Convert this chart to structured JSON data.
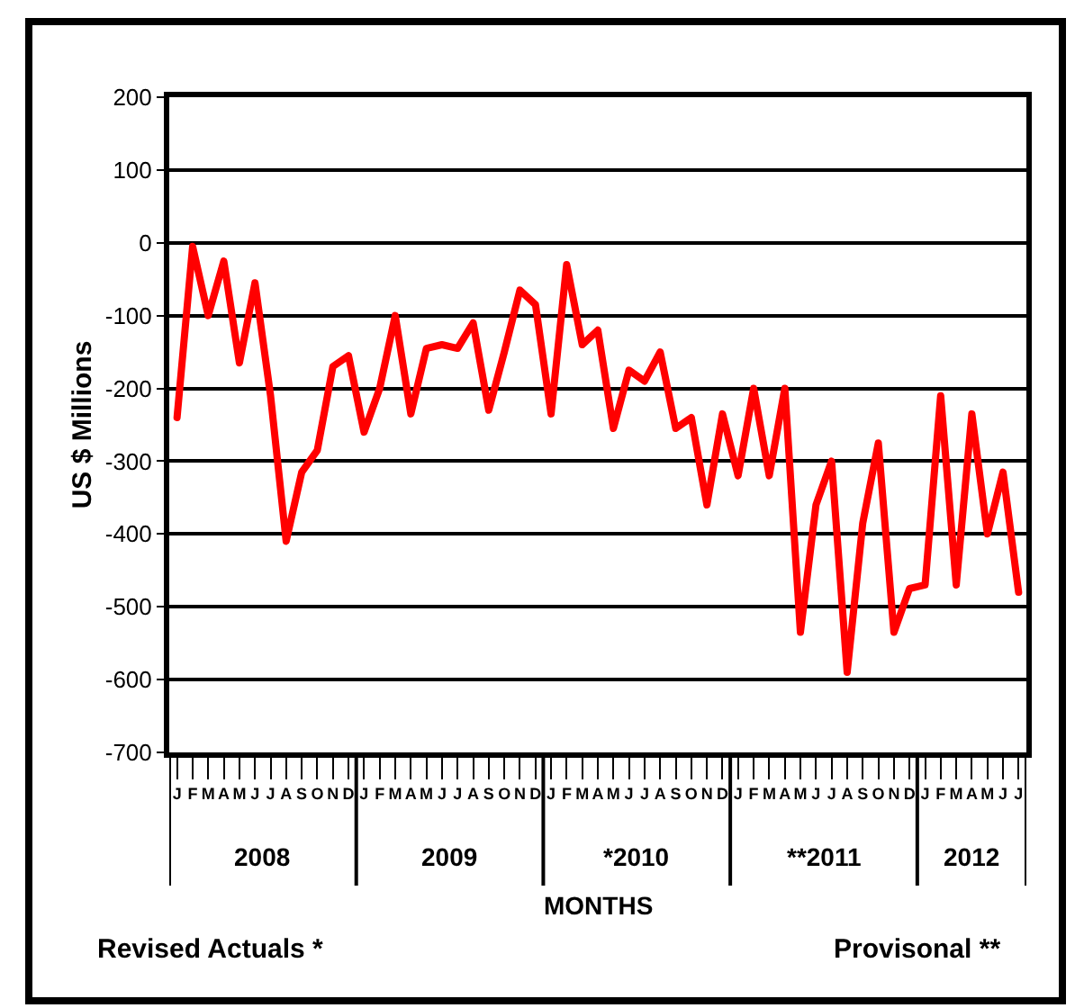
{
  "chart_data": {
    "type": "line",
    "ylabel": "US $ Millions",
    "xlabel": "MONTHS",
    "categories": [
      "J",
      "F",
      "M",
      "A",
      "M",
      "J",
      "J",
      "A",
      "S",
      "O",
      "N",
      "D",
      "J",
      "F",
      "M",
      "A",
      "M",
      "J",
      "J",
      "A",
      "S",
      "O",
      "N",
      "D",
      "J",
      "F",
      "M",
      "A",
      "M",
      "J",
      "J",
      "A",
      "S",
      "O",
      "N",
      "D",
      "J",
      "F",
      "M",
      "A",
      "M",
      "J",
      "J",
      "A",
      "S",
      "O",
      "N",
      "D",
      "J",
      "F",
      "M",
      "A",
      "M",
      "J",
      "J"
    ],
    "series": [
      {
        "color": "#ff0000",
        "values": [
          -240,
          -5,
          -100,
          -25,
          -165,
          -55,
          -210,
          -410,
          -315,
          -285,
          -170,
          -155,
          -260,
          -200,
          -100,
          -235,
          -145,
          -140,
          -145,
          -110,
          -230,
          -150,
          -65,
          -85,
          -235,
          -30,
          -140,
          -120,
          -255,
          -175,
          -190,
          -150,
          -255,
          -240,
          -360,
          -235,
          -320,
          -200,
          -320,
          -200,
          -535,
          -360,
          -300,
          -590,
          -385,
          -275,
          -535,
          -475,
          -470,
          -210,
          -470,
          -235,
          -400,
          -315,
          -480
        ]
      }
    ],
    "ylim": [
      -700,
      200
    ],
    "yticks": [
      -700,
      -600,
      -500,
      -400,
      -300,
      -200,
      -100,
      0,
      100,
      200
    ],
    "grid": "y",
    "marker": "none",
    "line_style": "solid",
    "annotations": [
      "2008",
      "2009",
      "*2010",
      "**2011",
      "2012",
      "Revised Actuals *",
      "Provisonal **"
    ]
  }
}
